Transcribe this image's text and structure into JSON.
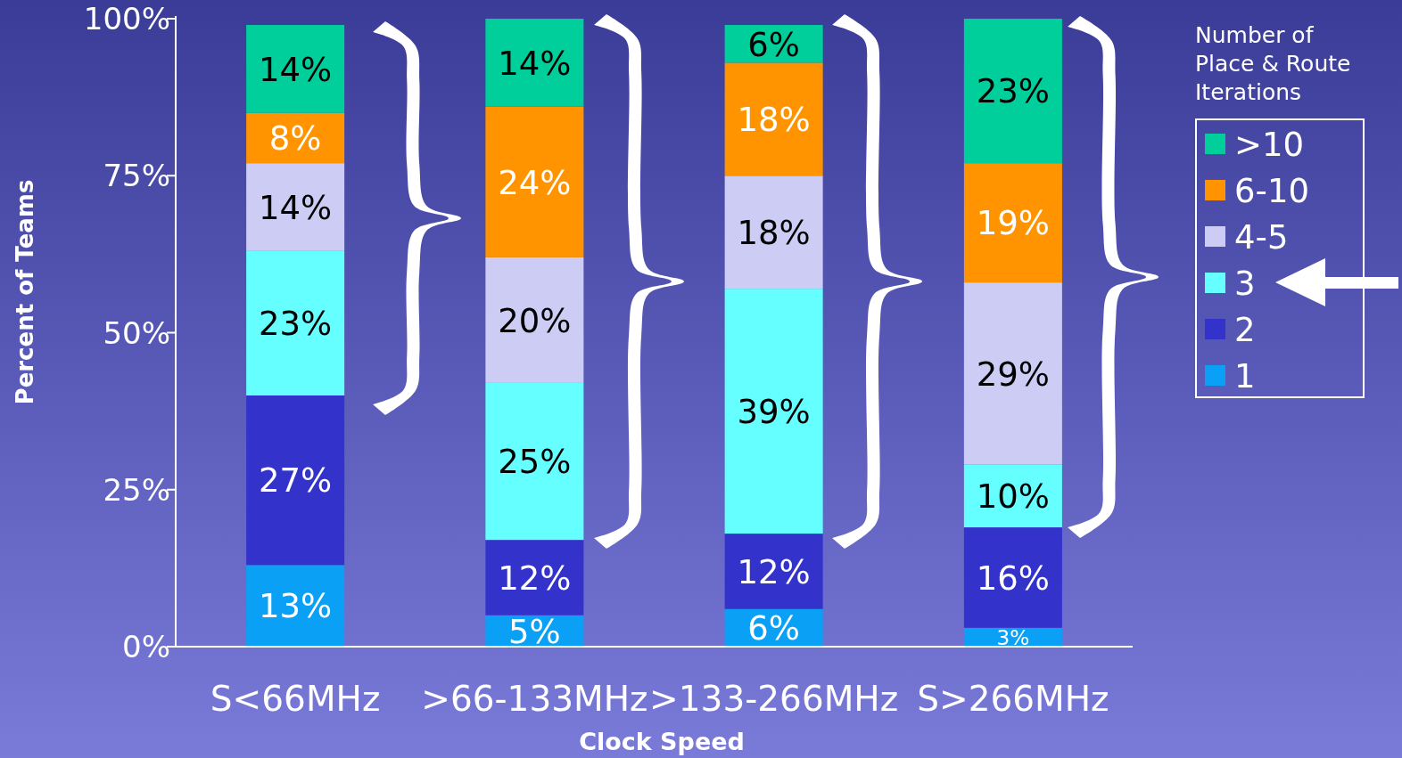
{
  "chart_data": {
    "type": "bar",
    "stacked": true,
    "xlabel": "Clock Speed",
    "ylabel": "Percent of Teams",
    "legend_title": "Number of Place & Route Iterations",
    "legend": "right",
    "categories": [
      "S<66MHz",
      ">66-133MHz",
      ">133-266MHz",
      "S>266MHz"
    ],
    "ylim": [
      0,
      100
    ],
    "yticks": [
      {
        "value": 0,
        "label": "0%"
      },
      {
        "value": 25,
        "label": "25%"
      },
      {
        "value": 50,
        "label": "50%"
      },
      {
        "value": 75,
        "label": "75%"
      },
      {
        "value": 100,
        "label": "100%"
      }
    ],
    "series": [
      {
        "name": "1",
        "color": "#0aa0f5",
        "values": [
          13,
          5,
          6,
          3
        ],
        "value_labels": [
          "13%",
          "5%",
          "6%",
          "3%"
        ]
      },
      {
        "name": "2",
        "color": "#3333cc",
        "values": [
          27,
          12,
          12,
          16
        ],
        "value_labels": [
          "27%",
          "12%",
          "12%",
          "16%"
        ]
      },
      {
        "name": "3",
        "color": "#66ffff",
        "values": [
          23,
          25,
          39,
          10
        ],
        "value_labels": [
          "23%",
          "25%",
          "39%",
          "10%"
        ]
      },
      {
        "name": "4-5",
        "color": "#ccccf5",
        "values": [
          14,
          20,
          18,
          29
        ],
        "value_labels": [
          "14%",
          "20%",
          "18%",
          "29%"
        ]
      },
      {
        "name": "6-10",
        "color": "#ff9400",
        "values": [
          8,
          24,
          18,
          19
        ],
        "value_labels": [
          "8%",
          "24%",
          "18%",
          "19%"
        ]
      },
      {
        "name": ">10",
        "color": "#00cf9b",
        "values": [
          14,
          14,
          6,
          23
        ],
        "value_labels": [
          "14%",
          "14%",
          "6%",
          "23%"
        ]
      }
    ]
  }
}
